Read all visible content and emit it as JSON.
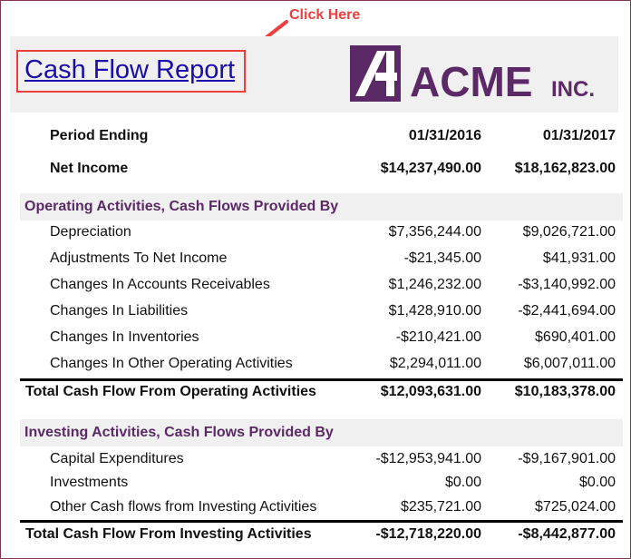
{
  "callout": "Click Here",
  "title": "Cash Flow Report",
  "logo": {
    "name": "ACME",
    "suffix": "INC.",
    "color": "#5b2a66"
  },
  "header_row": {
    "label": "Period Ending",
    "col1": "01/31/2016",
    "col2": "01/31/2017"
  },
  "net_income": {
    "label": "Net Income",
    "col1": "$14,237,490.00",
    "col2": "$18,162,823.00"
  },
  "operating": {
    "title": "Operating Activities, Cash Flows Provided By",
    "rows": [
      {
        "label": "Depreciation",
        "col1": "$7,356,244.00",
        "col2": "$9,026,721.00"
      },
      {
        "label": "Adjustments To Net Income",
        "col1": "-$21,345.00",
        "col2": "$41,931.00"
      },
      {
        "label": "Changes In Accounts Receivables",
        "col1": "$1,246,232.00",
        "col2": "-$3,140,992.00"
      },
      {
        "label": "Changes In Liabilities",
        "col1": "$1,428,910.00",
        "col2": "-$2,441,694.00"
      },
      {
        "label": "Changes In Inventories",
        "col1": "-$210,421.00",
        "col2": "$690,401.00"
      },
      {
        "label": "Changes In Other Operating Activities",
        "col1": "$2,294,011.00",
        "col2": "$6,007,011.00"
      }
    ],
    "total": {
      "label": "Total Cash Flow From Operating Activities",
      "col1": "$12,093,631.00",
      "col2": "$10,183,378.00"
    }
  },
  "investing": {
    "title": "Investing Activities, Cash Flows Provided By",
    "rows": [
      {
        "label": "Capital Expenditures",
        "col1": "-$12,953,941.00",
        "col2": "-$9,167,901.00"
      },
      {
        "label": "Investments",
        "col1": "$0.00",
        "col2": "$0.00"
      },
      {
        "label": "Other Cash flows from Investing Activities",
        "col1": "$235,721.00",
        "col2": "$725,024.00"
      }
    ],
    "total": {
      "label": "Total Cash Flow From Investing Activities",
      "col1": "-$12,718,220.00",
      "col2": "-$8,442,877.00"
    }
  }
}
